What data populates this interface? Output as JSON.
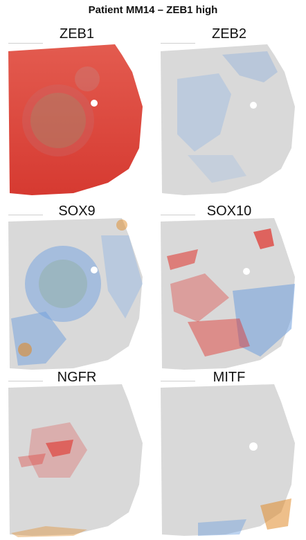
{
  "title": "Patient MM14 – ZEB1 high",
  "panels": [
    {
      "label": "ZEB1",
      "pattern": "red-dominant"
    },
    {
      "label": "ZEB2",
      "pattern": "grey-blue"
    },
    {
      "label": "SOX9",
      "pattern": "blue-mixed"
    },
    {
      "label": "SOX10",
      "pattern": "red-blue-mixed"
    },
    {
      "label": "NGFR",
      "pattern": "grey-red-center"
    },
    {
      "label": "MITF",
      "pattern": "grey-mostly"
    }
  ],
  "colors": {
    "background": "#ffffff",
    "tissue_grey": "#d9d9d9",
    "high_red": "#e0312a",
    "mid_blue": "#6f9fdd",
    "accent_orange": "#e08b2a"
  }
}
